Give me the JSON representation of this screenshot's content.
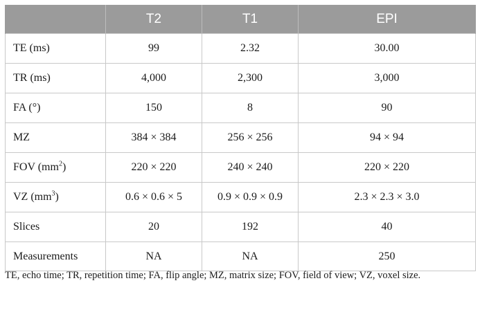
{
  "table": {
    "headers": [
      "",
      "T2",
      "T1",
      "EPI"
    ],
    "rows": [
      {
        "label": "TE (ms)",
        "label_sup": "",
        "label_suffix": "",
        "values": [
          "99",
          "2.32",
          "30.00"
        ]
      },
      {
        "label": "TR (ms)",
        "label_sup": "",
        "label_suffix": "",
        "values": [
          "4,000",
          "2,300",
          "3,000"
        ]
      },
      {
        "label": "FA (°)",
        "label_sup": "",
        "label_suffix": "",
        "values": [
          "150",
          "8",
          "90"
        ]
      },
      {
        "label": "MZ",
        "label_sup": "",
        "label_suffix": "",
        "values": [
          "384 × 384",
          "256 × 256",
          "94 × 94"
        ]
      },
      {
        "label": "FOV (mm",
        "label_sup": "2",
        "label_suffix": ")",
        "values": [
          "220 × 220",
          "240 × 240",
          "220 × 220"
        ]
      },
      {
        "label": "VZ (mm",
        "label_sup": "3",
        "label_suffix": ")",
        "values": [
          "0.6 × 0.6 × 5",
          "0.9 × 0.9 × 0.9",
          "2.3 × 2.3 × 3.0"
        ]
      },
      {
        "label": "Slices",
        "label_sup": "",
        "label_suffix": "",
        "values": [
          "20",
          "192",
          "40"
        ]
      },
      {
        "label": "Measurements",
        "label_sup": "",
        "label_suffix": "",
        "values": [
          "NA",
          "NA",
          "250"
        ]
      }
    ]
  },
  "footnote": "TE, echo time; TR, repetition time; FA, flip angle; MZ, matrix size; FOV, field of view; VZ, voxel size."
}
